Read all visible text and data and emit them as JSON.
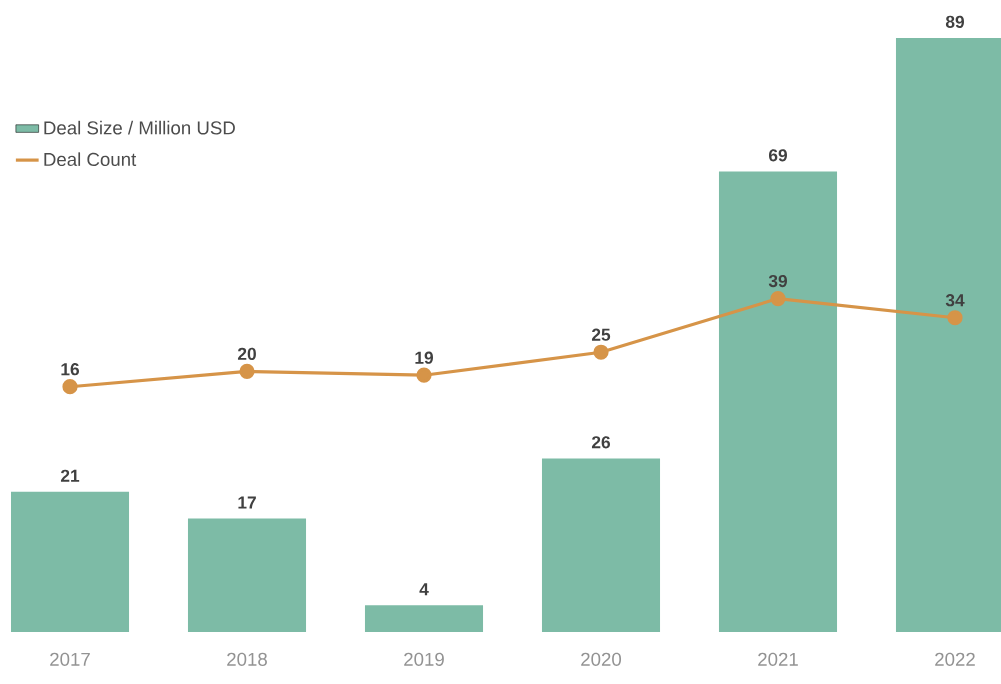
{
  "chart_data": {
    "type": "bar",
    "categories": [
      "2017",
      "2018",
      "2019",
      "2020",
      "2021",
      "2022"
    ],
    "series": [
      {
        "name": "Deal Size / Million USD",
        "color": "#7dbba6",
        "values": [
          21,
          17,
          4,
          26,
          69,
          89
        ]
      },
      {
        "name": "Deal Count",
        "type": "line",
        "axis": "y2",
        "color": "#d69448",
        "values": [
          16,
          20,
          19,
          25,
          39,
          34
        ]
      }
    ],
    "ylim": [
      0,
      89
    ],
    "y2lim": [
      -48,
      107
    ],
    "data_labels": true,
    "legend": "top left",
    "marker": "circle",
    "line_style": "solid",
    "tick_labels": "x"
  }
}
